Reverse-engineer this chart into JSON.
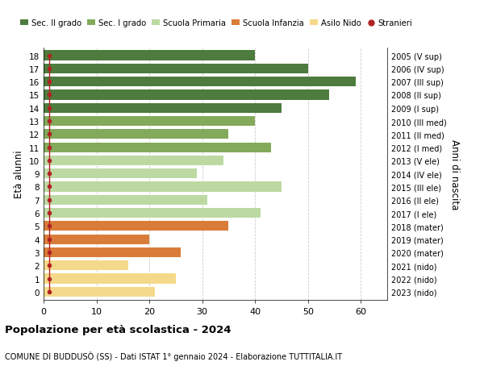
{
  "ages": [
    18,
    17,
    16,
    15,
    14,
    13,
    12,
    11,
    10,
    9,
    8,
    7,
    6,
    5,
    4,
    3,
    2,
    1,
    0
  ],
  "values": [
    40,
    50,
    59,
    54,
    45,
    40,
    35,
    43,
    34,
    29,
    45,
    31,
    41,
    35,
    20,
    26,
    16,
    25,
    21
  ],
  "stranieri_vals": [
    1,
    1,
    1,
    1,
    1,
    1,
    1,
    1,
    1,
    1,
    1,
    1,
    2,
    1,
    1,
    2,
    1,
    1,
    1
  ],
  "right_labels": [
    "2005 (V sup)",
    "2006 (IV sup)",
    "2007 (III sup)",
    "2008 (II sup)",
    "2009 (I sup)",
    "2010 (III med)",
    "2011 (II med)",
    "2012 (I med)",
    "2013 (V ele)",
    "2014 (IV ele)",
    "2015 (III ele)",
    "2016 (II ele)",
    "2017 (I ele)",
    "2018 (mater)",
    "2019 (mater)",
    "2020 (mater)",
    "2021 (nido)",
    "2022 (nido)",
    "2023 (nido)"
  ],
  "bar_colors": [
    "#4d7c3e",
    "#4d7c3e",
    "#4d7c3e",
    "#4d7c3e",
    "#4d7c3e",
    "#82aa5a",
    "#82aa5a",
    "#82aa5a",
    "#bdd9a2",
    "#bdd9a2",
    "#bdd9a2",
    "#bdd9a2",
    "#bdd9a2",
    "#d97c3a",
    "#d97c3a",
    "#d97c3a",
    "#f5d98a",
    "#f5d98a",
    "#f5d98a"
  ],
  "legend_labels": [
    "Sec. II grado",
    "Sec. I grado",
    "Scuola Primaria",
    "Scuola Infanzia",
    "Asilo Nido",
    "Stranieri"
  ],
  "legend_colors": [
    "#4d7c3e",
    "#82aa5a",
    "#bdd9a2",
    "#d97c3a",
    "#f5d98a",
    "#b22222"
  ],
  "ylabel": "Età alunni",
  "right_ylabel": "Anni di nascita",
  "title": "Popolazione per età scolastica - 2024",
  "subtitle": "COMUNE DI BUDDUSÒ (SS) - Dati ISTAT 1° gennaio 2024 - Elaborazione TUTTITALIA.IT",
  "xlim": [
    0,
    65
  ],
  "xticks": [
    0,
    10,
    20,
    30,
    40,
    50,
    60
  ],
  "background_color": "#ffffff",
  "grid_color": "#cccccc",
  "stranieri_color": "#b22222",
  "bar_height": 0.75
}
